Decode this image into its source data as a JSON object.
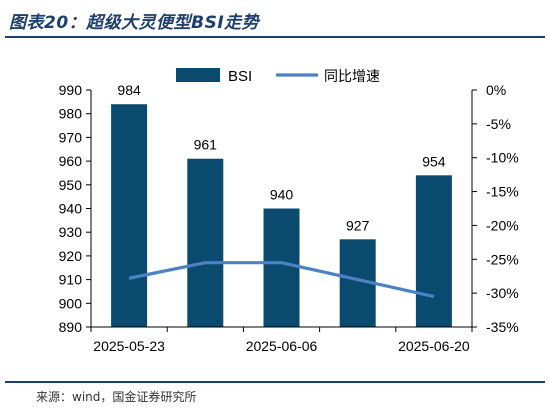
{
  "figure": {
    "title": "图表20：超级大灵便型BSI走势",
    "source": "来源：wind，国金证券研究所"
  },
  "colors": {
    "bar": "#0b4a6f",
    "line": "#4b82c4",
    "title": "#1c3f6e"
  },
  "chart_data": {
    "type": "bar",
    "x_tick_labels": [
      "2025-05-23",
      "2025-06-06",
      "2025-06-20"
    ],
    "series": [
      {
        "name": "BSI",
        "type": "bar",
        "axis": "left",
        "values": [
          984,
          961,
          940,
          927,
          954
        ],
        "labels": [
          "984",
          "961",
          "940",
          "927",
          "954"
        ]
      },
      {
        "name": "同比增速",
        "type": "line",
        "axis": "right",
        "values": [
          -27.8,
          -25.5,
          -25.5,
          -28.0,
          -30.5
        ]
      }
    ],
    "y_left": {
      "min": 890,
      "max": 990,
      "step": 10,
      "tick_labels": [
        "990",
        "980",
        "970",
        "960",
        "950",
        "940",
        "930",
        "920",
        "910",
        "900",
        "890"
      ]
    },
    "y_right": {
      "min": -35,
      "max": 0,
      "step": 5,
      "tick_labels": [
        "0%",
        "-5%",
        "-10%",
        "-15%",
        "-20%",
        "-25%",
        "-30%",
        "-35%"
      ]
    },
    "grid": false,
    "legend": "top-center"
  }
}
